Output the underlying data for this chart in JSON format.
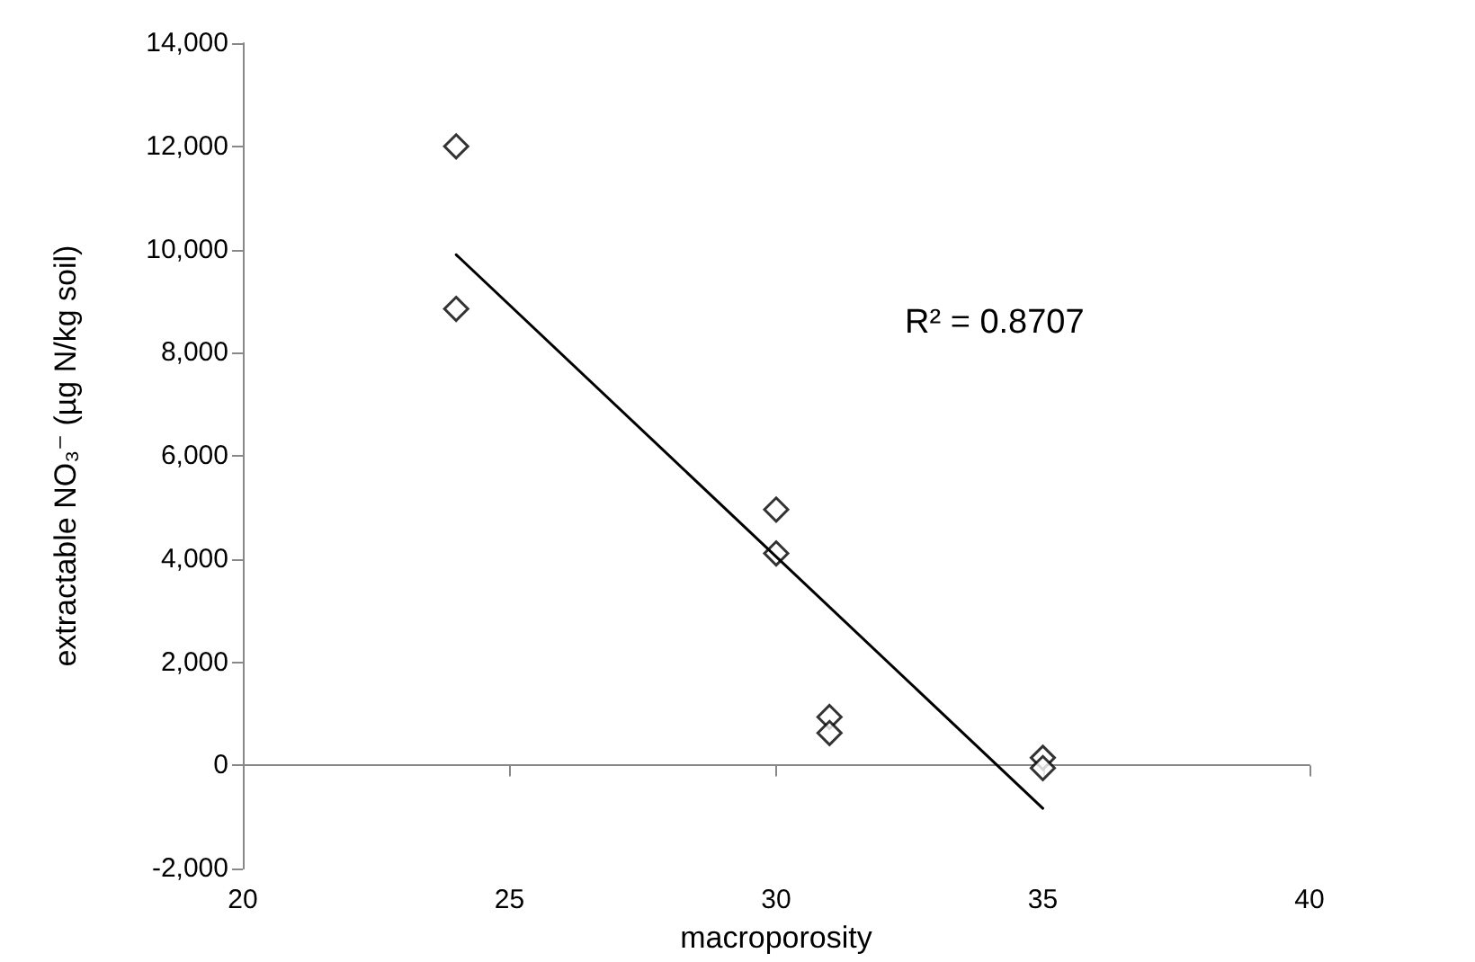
{
  "chart_data": {
    "type": "scatter",
    "xlabel": "macroporosity",
    "ylabel": "extractable NO₃⁻ (µg N/kg soil)",
    "annotations": [
      "R² = 0.8707"
    ],
    "series": [
      {
        "color": "#000000",
        "marker": "diamond",
        "x": [
          24,
          24,
          30,
          30,
          31,
          31,
          35,
          35
        ],
        "values": [
          12000,
          8850,
          4960,
          4110,
          940,
          630,
          150,
          -50
        ]
      },
      {
        "type": "line",
        "color": "#000000",
        "marker": "none",
        "line_style": "solid",
        "x": [
          24,
          35
        ],
        "values": [
          9900,
          -830
        ]
      }
    ],
    "xlim": [
      20,
      40
    ],
    "xticks": [
      20,
      25,
      30,
      35,
      40
    ],
    "ylim": [
      -2000,
      14000
    ],
    "yticks": [
      {
        "value": -2000,
        "label": "-2,000"
      },
      0,
      {
        "value": 2000,
        "label": "2,000"
      },
      {
        "value": 4000,
        "label": "4,000"
      },
      {
        "value": 6000,
        "label": "6,000"
      },
      {
        "value": 8000,
        "label": "8,000"
      },
      {
        "value": 10000,
        "label": "10,000"
      },
      {
        "value": 12000,
        "label": "12,000"
      },
      {
        "value": 14000,
        "label": "14,000"
      }
    ]
  }
}
